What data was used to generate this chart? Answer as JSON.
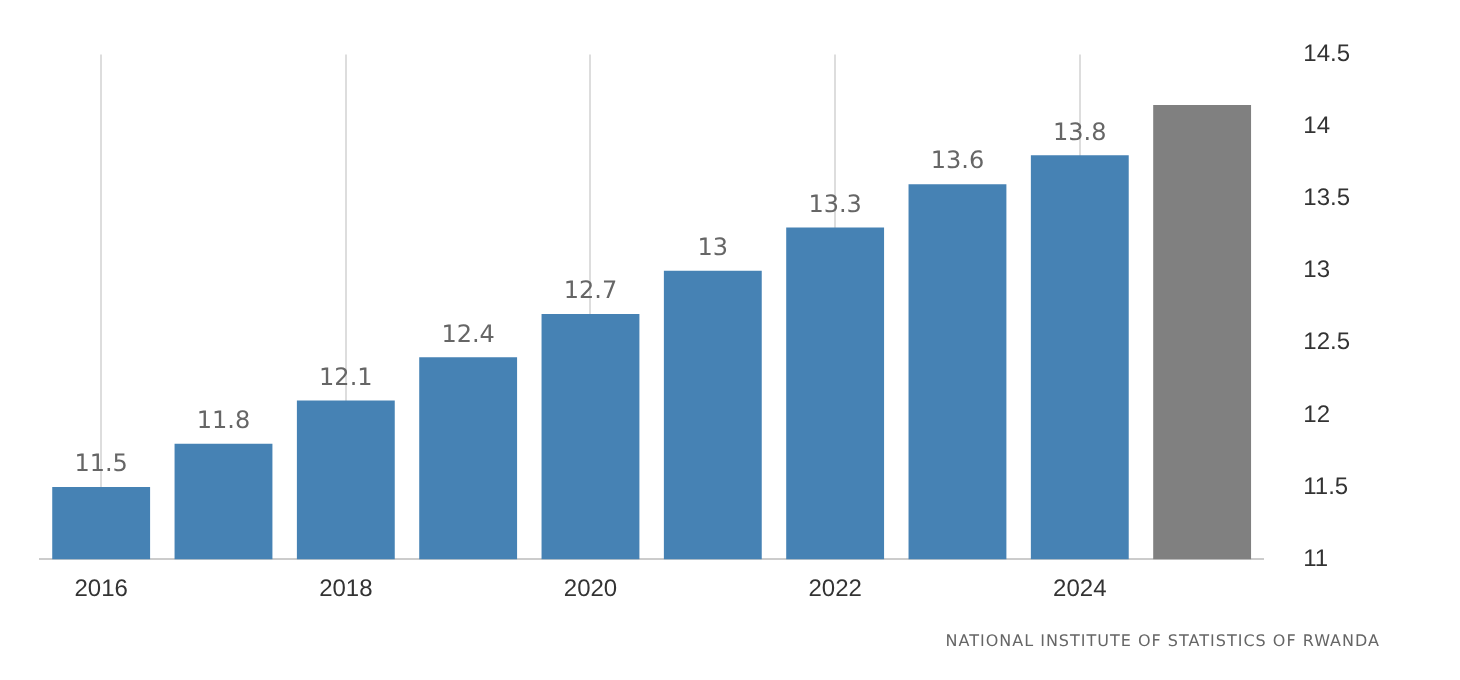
{
  "chart_data": {
    "type": "bar",
    "categories": [
      "2016",
      null,
      "2018",
      null,
      "2020",
      null,
      "2022",
      null,
      "2024",
      null
    ],
    "values": [
      11.5,
      11.8,
      12.1,
      12.4,
      12.7,
      13,
      13.3,
      13.6,
      13.8,
      14.15
    ],
    "colors": [
      "#4682b4",
      "#4682b4",
      "#4682b4",
      "#4682b4",
      "#4682b4",
      "#4682b4",
      "#4682b4",
      "#4682b4",
      "#4682b4",
      "#808080"
    ],
    "value_labels": [
      "11.5",
      "11.8",
      "12.1",
      "12.4",
      "12.7",
      "13",
      "13.3",
      "13.6",
      "13.8",
      null
    ],
    "ylim": [
      11,
      14.5
    ],
    "yticks": [
      11,
      11.5,
      12,
      12.5,
      13,
      13.5,
      14,
      14.5
    ],
    "grid": "x",
    "annotations": [
      "NATIONAL INSTITUTE OF STATISTICS OF RWANDA"
    ]
  }
}
